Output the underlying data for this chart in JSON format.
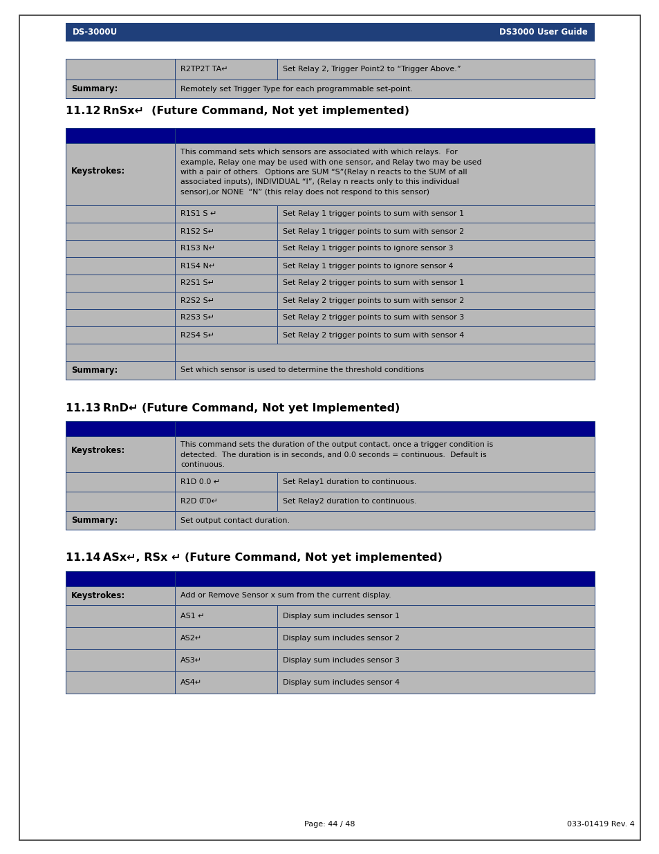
{
  "page_bg": "#ffffff",
  "border_color": "#000000",
  "header_bg": "#1f3f7a",
  "header_text_color": "#ffffff",
  "header_left": "DS-3000U",
  "header_right": "DS3000 User Guide",
  "table_header_bg": "#00008B",
  "table_row_bg": "#b8b8b8",
  "cell_border": "#1f3f7a",
  "footer_page": "Page: 44 / 48",
  "footer_rev": "033-01419 Rev. 4",
  "top_table_row1_col1": "R2TP2T TA↵",
  "top_table_row1_col2": "Set Relay 2, Trigger Point2 to “Trigger Above.”",
  "top_table_sum": "Remotely set Trigger Type for each programmable set-point.",
  "sec1_title": "11.12 RnSx↵  (Future Command, Not yet implemented)",
  "sec2_title": "11.13 RnD↵ (Future Command, Not yet Implemented)",
  "sec3_title": "11.14 ASx↵, RSx ↵ (Future Command, Not yet implemented)",
  "table1_ks": "This command sets which sensors are associated with which relays.  For example, Relay one may be used with one sensor, and Relay two may be used with a pair of others.  Options are SUM “S”(Relay n reacts to the SUM of all associated inputs), INDIVIDUAL “I”, (Relay n reacts only to this individual sensor),or NONE  “N” (this relay does not respond to this sensor)",
  "table1_rows": [
    [
      "R1S1 S ↵",
      "Set Relay 1 trigger points to sum with sensor 1"
    ],
    [
      "R1S2 S↵",
      "Set Relay 1 trigger points to sum with sensor 2"
    ],
    [
      "R1S3 N↵",
      "Set Relay 1 trigger points to ignore sensor 3"
    ],
    [
      "R1S4 N↵",
      "Set Relay 1 trigger points to ignore sensor 4"
    ],
    [
      "R2S1 S↵",
      "Set Relay 2 trigger points to sum with sensor 1"
    ],
    [
      "R2S2 S↵",
      "Set Relay 2 trigger points to sum with sensor 2"
    ],
    [
      "R2S3 S↵",
      "Set Relay 2 trigger points to sum with sensor 3"
    ],
    [
      "R2S4 S↵",
      "Set Relay 2 trigger points to sum with sensor 4"
    ]
  ],
  "table1_sum": "Set which sensor is used to determine the threshold conditions",
  "table2_ks": "This command sets the duration of the output contact, once a trigger condition is detected.  The duration is in seconds, and 0.0 seconds = continuous.  Default is continuous.",
  "table2_rows": [
    [
      "R1D 0.0 ↵",
      "Set Relay1 duration to continuous."
    ],
    [
      "R2D 0.̅0↵",
      "Set Relay2 duration to continuous."
    ]
  ],
  "table2_sum": "Set output contact duration.",
  "table3_ks": "Add or Remove Sensor x sum from the current display.",
  "table3_rows": [
    [
      "AS1 ↵",
      "Display sum includes sensor 1"
    ],
    [
      "AS2↵",
      "Display sum includes sensor 2"
    ],
    [
      "AS3↵",
      "Display sum includes sensor 3"
    ],
    [
      "AS4↵",
      "Display sum includes sensor 4"
    ]
  ]
}
